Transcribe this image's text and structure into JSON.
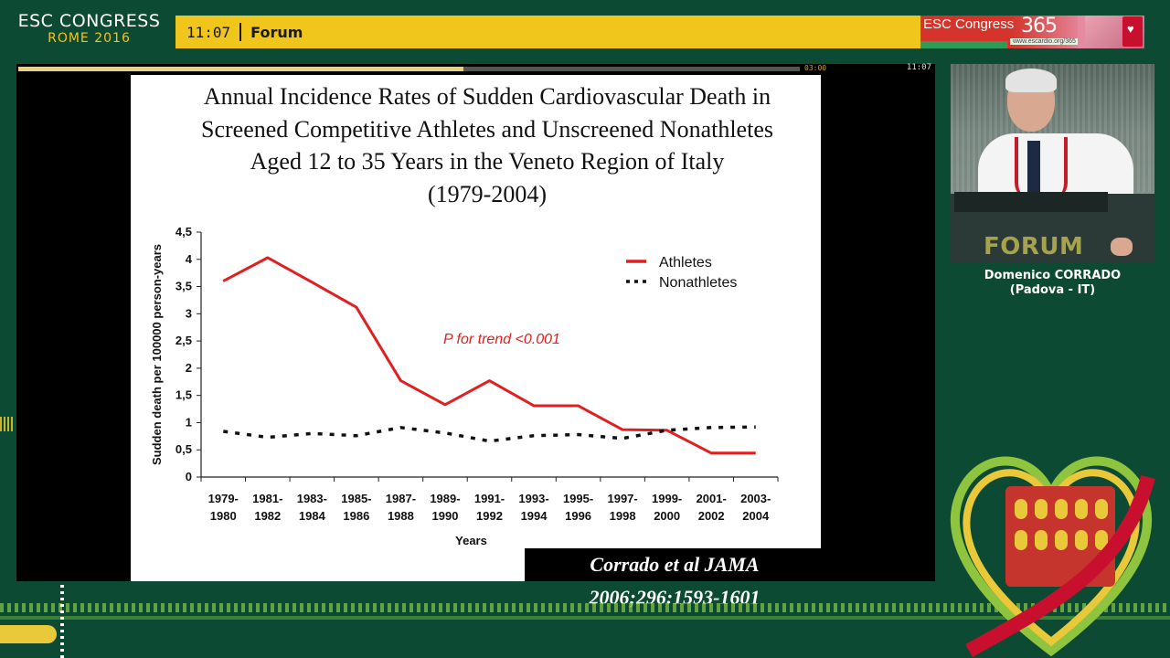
{
  "header": {
    "brand_line1": "ESC CONGRESS",
    "brand_line2": "ROME  2016",
    "clock": "11:07",
    "room": "Forum",
    "esc365_label": "ESC Congress",
    "esc365_number": "365",
    "esc365_url": "www.escardio.org/365"
  },
  "player": {
    "progress_fraction": 0.57,
    "progress_time": "03:00",
    "stream_time": "11:07"
  },
  "slide": {
    "title_lines": [
      "Annual Incidence Rates of Sudden Cardiovascular Death in",
      "Screened Competitive Athletes and Unscreened Nonathletes",
      "Aged 12 to 35 Years in the Veneto Region of Italy",
      "(1979-2004)"
    ],
    "citation": "Corrado et al JAMA 2006;296:1593-1601"
  },
  "chart_data": {
    "type": "line",
    "title": "Annual Incidence Rates of Sudden Cardiovascular Death in Screened Competitive Athletes and Unscreened Nonathletes Aged 12 to 35 Years in the Veneto Region of Italy (1979-2004)",
    "xlabel": "Years",
    "ylabel": "Sudden death per 100000 person-years",
    "categories": [
      [
        "1979-",
        "1980"
      ],
      [
        "1981-",
        "1982"
      ],
      [
        "1983-",
        "1984"
      ],
      [
        "1985-",
        "1986"
      ],
      [
        "1987-",
        "1988"
      ],
      [
        "1989-",
        "1990"
      ],
      [
        "1991-",
        "1992"
      ],
      [
        "1993-",
        "1994"
      ],
      [
        "1995-",
        "1996"
      ],
      [
        "1997-",
        "1998"
      ],
      [
        "1999-",
        "2000"
      ],
      [
        "2001-",
        "2002"
      ],
      [
        "2003-",
        "2004"
      ]
    ],
    "yticks": [
      "0",
      "0,5",
      "1",
      "1,5",
      "2",
      "2,5",
      "3",
      "3,5",
      "4",
      "4,5"
    ],
    "ylim": [
      0,
      4.5
    ],
    "series": [
      {
        "name": "Athletes",
        "color": "#e02020",
        "style": "solid",
        "values": [
          3.6,
          4.03,
          3.58,
          3.12,
          1.77,
          1.33,
          1.77,
          1.31,
          1.31,
          0.87,
          0.86,
          0.44,
          0.44
        ]
      },
      {
        "name": "Nonathletes",
        "color": "#111111",
        "style": "dotted",
        "values": [
          0.84,
          0.73,
          0.8,
          0.76,
          0.91,
          0.81,
          0.66,
          0.76,
          0.78,
          0.71,
          0.86,
          0.91,
          0.92
        ]
      }
    ],
    "annotation": "P for trend <0.001",
    "legend_position": "top-right",
    "grid": false
  },
  "speaker": {
    "name": "Domenico CORRADO",
    "affiliation": "(Padova - IT)",
    "podium_label": "FORUM"
  }
}
